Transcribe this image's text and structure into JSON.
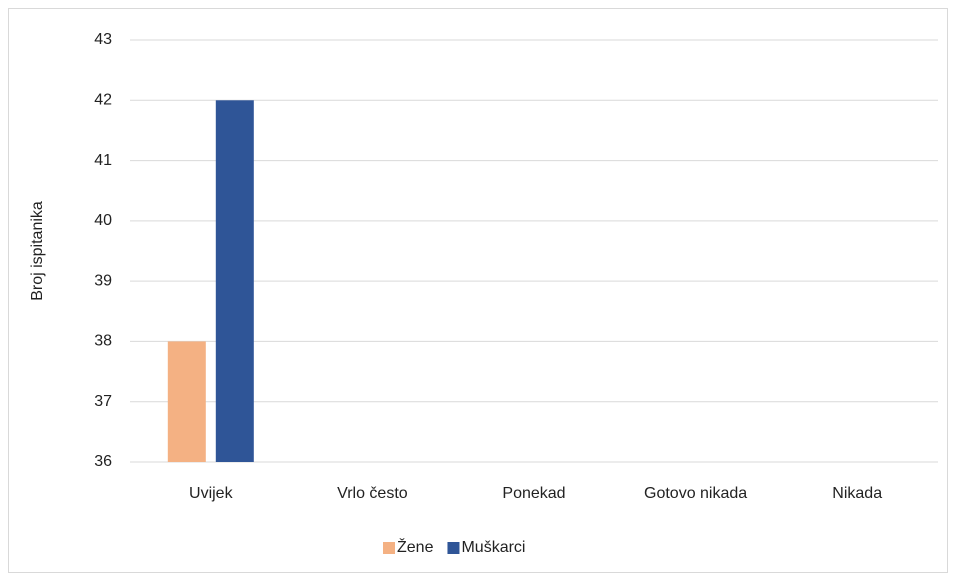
{
  "chart_data": {
    "type": "bar",
    "y_label": "Broj ispitanika",
    "categories": [
      "Uvijek",
      "Vrlo često",
      "Ponekad",
      "Gotovo nikada",
      "Nikada"
    ],
    "series": [
      {
        "name": "Žene",
        "color": "#f4b183",
        "values": [
          38,
          null,
          null,
          null,
          null
        ]
      },
      {
        "name": "Muškarci",
        "color": "#2f5597",
        "values": [
          42,
          null,
          null,
          null,
          null
        ]
      }
    ],
    "ylim": [
      36,
      43
    ],
    "yticks": [
      36,
      37,
      38,
      39,
      40,
      41,
      42,
      43
    ],
    "grid": true,
    "legend": "bottom"
  }
}
